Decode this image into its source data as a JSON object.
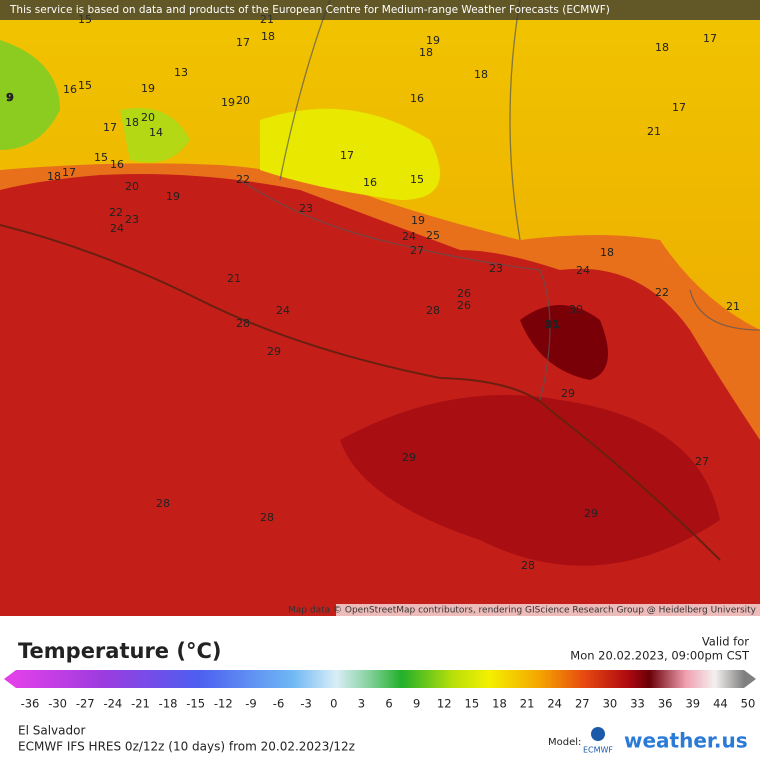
{
  "banner": "This service is based on data and products of the European Centre for Medium-range Weather Forecasts (ECMWF)",
  "map": {
    "labels": [
      15,
      21,
      17,
      18,
      19,
      18,
      18,
      17,
      13,
      15,
      16,
      18,
      9,
      19,
      19,
      20,
      16,
      17,
      17,
      18,
      20,
      14,
      21,
      15,
      16,
      17,
      16,
      15,
      18,
      17,
      20,
      19,
      22,
      23,
      22,
      23,
      24,
      19,
      24,
      25,
      27,
      18,
      21,
      23,
      24,
      22,
      26,
      26,
      28,
      24,
      21,
      28,
      31,
      30,
      29,
      29,
      29,
      27,
      28,
      28,
      29,
      28
    ],
    "attribution": "Map data © OpenStreetMap contributors, rendering GIScience Research Group @ Heidelberg University"
  },
  "legend": {
    "title": "Temperature (°C)",
    "valid_label": "Valid for",
    "valid_time": "Mon 20.02.2023, 09:00pm CST",
    "ticks": [
      -36,
      -30,
      -27,
      -24,
      -21,
      -18,
      -15,
      -12,
      -9,
      -6,
      -3,
      0,
      3,
      6,
      9,
      12,
      15,
      18,
      21,
      24,
      27,
      30,
      33,
      36,
      39,
      44,
      50
    ]
  },
  "footer": {
    "region": "El Salvador",
    "model_run": "ECMWF IFS HRES 0z/12z (10 days) from 20.02.2023/12z",
    "model_label": "Model:",
    "model_logo": "ECMWF",
    "brand": "weather.us"
  }
}
